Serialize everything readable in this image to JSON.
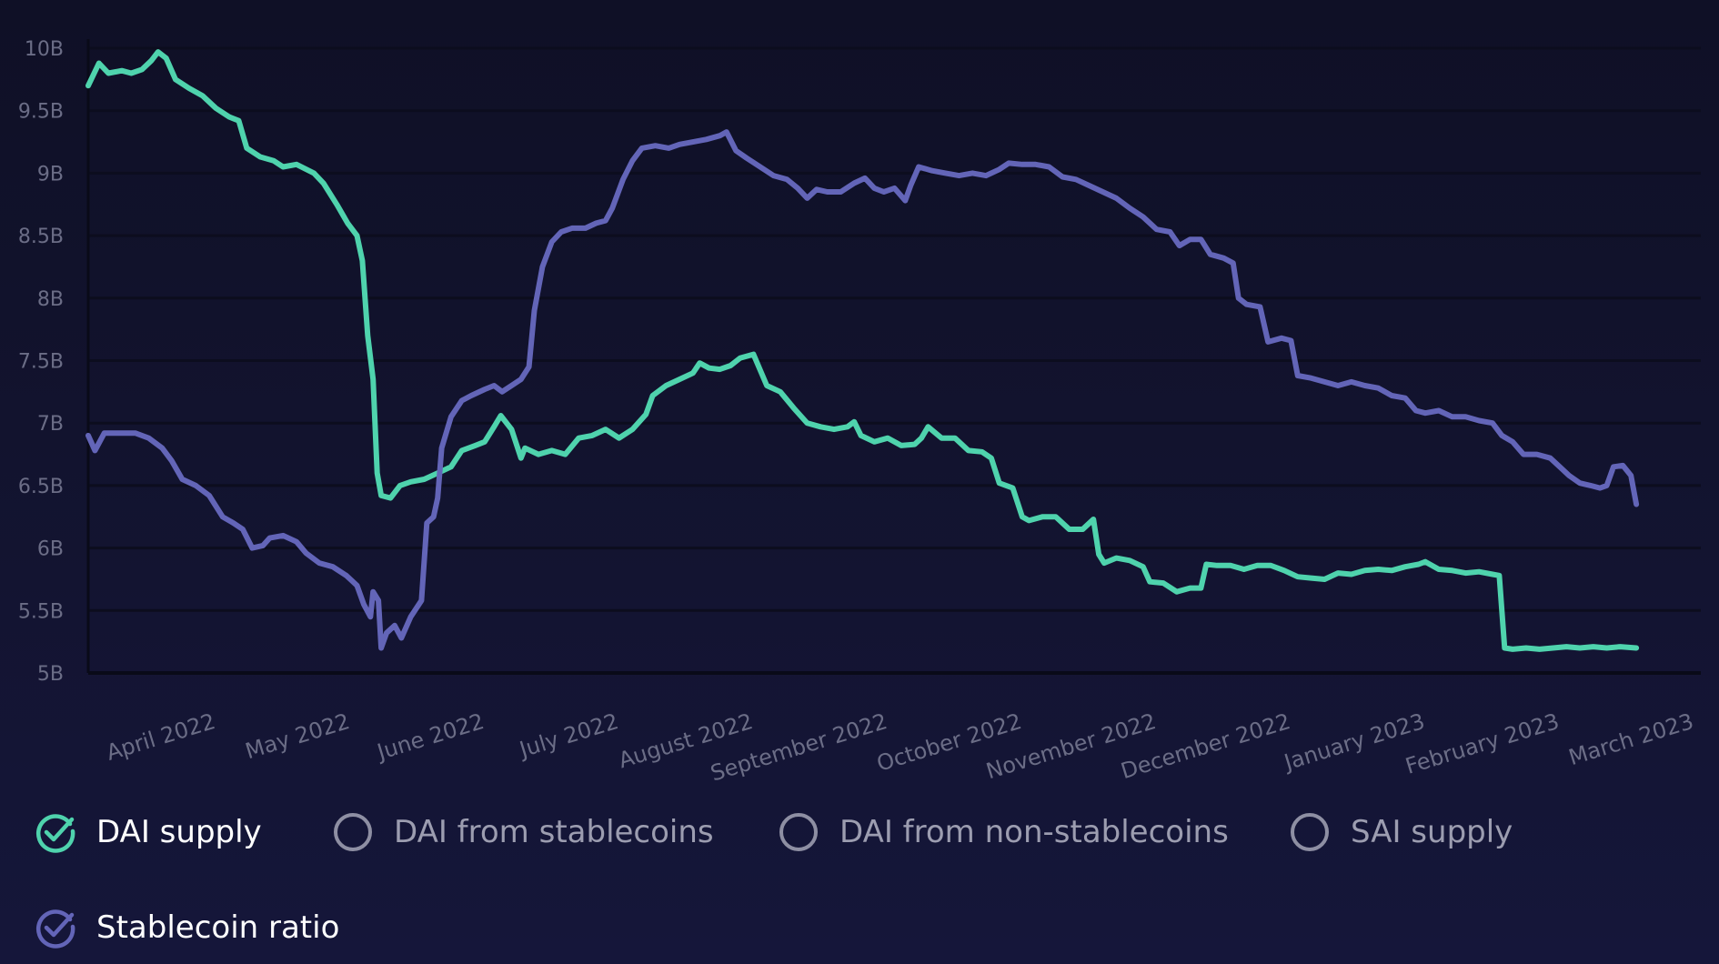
{
  "colors": {
    "dai_supply": "#4fd3ad",
    "stablecoin_ratio": "#6365b8",
    "inactive": "#8e8fa3",
    "grid": "#0c0d1e",
    "axis": "#090a18"
  },
  "chart_data": {
    "type": "line",
    "title": "",
    "xlabel": "",
    "ylabel": "",
    "ylim": [
      5000000000,
      10000000000
    ],
    "y_ticks": [
      {
        "value": 5000000000,
        "label": "5B"
      },
      {
        "value": 5500000000,
        "label": "5.5B"
      },
      {
        "value": 6000000000,
        "label": "6B"
      },
      {
        "value": 6500000000,
        "label": "6.5B"
      },
      {
        "value": 7000000000,
        "label": "7B"
      },
      {
        "value": 7500000000,
        "label": "7.5B"
      },
      {
        "value": 8000000000,
        "label": "8B"
      },
      {
        "value": 8500000000,
        "label": "8.5B"
      },
      {
        "value": 9000000000,
        "label": "9B"
      },
      {
        "value": 9500000000,
        "label": "9.5B"
      },
      {
        "value": 10000000000,
        "label": "10B"
      }
    ],
    "xlim": [
      0,
      12
    ],
    "x_ticks": [
      {
        "value": 0.55,
        "label": "April 2022"
      },
      {
        "value": 1.55,
        "label": "May 2022"
      },
      {
        "value": 2.55,
        "label": "June 2022"
      },
      {
        "value": 3.55,
        "label": "July 2022"
      },
      {
        "value": 4.55,
        "label": "August 2022"
      },
      {
        "value": 5.55,
        "label": "September 2022"
      },
      {
        "value": 6.55,
        "label": "October 2022"
      },
      {
        "value": 7.55,
        "label": "November 2022"
      },
      {
        "value": 8.55,
        "label": "December 2022"
      },
      {
        "value": 9.55,
        "label": "January 2023"
      },
      {
        "value": 10.55,
        "label": "February 2023"
      },
      {
        "value": 11.55,
        "label": "March 2023"
      }
    ],
    "series": [
      {
        "name": "DAI supply",
        "color": "#4fd3ad",
        "visible": true,
        "points": [
          [
            0.0,
            9.7
          ],
          [
            0.08,
            9.88
          ],
          [
            0.15,
            9.8
          ],
          [
            0.25,
            9.82
          ],
          [
            0.32,
            9.8
          ],
          [
            0.4,
            9.83
          ],
          [
            0.47,
            9.9
          ],
          [
            0.52,
            9.97
          ],
          [
            0.58,
            9.92
          ],
          [
            0.65,
            9.75
          ],
          [
            0.75,
            9.68
          ],
          [
            0.85,
            9.62
          ],
          [
            0.95,
            9.52
          ],
          [
            1.05,
            9.45
          ],
          [
            1.12,
            9.42
          ],
          [
            1.18,
            9.2
          ],
          [
            1.28,
            9.13
          ],
          [
            1.38,
            9.1
          ],
          [
            1.45,
            9.05
          ],
          [
            1.55,
            9.07
          ],
          [
            1.68,
            9.0
          ],
          [
            1.75,
            8.92
          ],
          [
            1.85,
            8.75
          ],
          [
            1.93,
            8.6
          ],
          [
            2.0,
            8.5
          ],
          [
            2.04,
            8.3
          ],
          [
            2.08,
            7.7
          ],
          [
            2.12,
            7.35
          ],
          [
            2.15,
            6.6
          ],
          [
            2.18,
            6.42
          ],
          [
            2.25,
            6.4
          ],
          [
            2.32,
            6.5
          ],
          [
            2.4,
            6.53
          ],
          [
            2.5,
            6.55
          ],
          [
            2.6,
            6.6
          ],
          [
            2.7,
            6.65
          ],
          [
            2.78,
            6.78
          ],
          [
            2.88,
            6.82
          ],
          [
            2.95,
            6.85
          ],
          [
            3.02,
            6.97
          ],
          [
            3.07,
            7.06
          ],
          [
            3.15,
            6.95
          ],
          [
            3.22,
            6.72
          ],
          [
            3.25,
            6.8
          ],
          [
            3.35,
            6.75
          ],
          [
            3.45,
            6.78
          ],
          [
            3.55,
            6.75
          ],
          [
            3.65,
            6.88
          ],
          [
            3.75,
            6.9
          ],
          [
            3.85,
            6.95
          ],
          [
            3.95,
            6.88
          ],
          [
            4.05,
            6.95
          ],
          [
            4.15,
            7.07
          ],
          [
            4.2,
            7.22
          ],
          [
            4.3,
            7.3
          ],
          [
            4.4,
            7.35
          ],
          [
            4.5,
            7.4
          ],
          [
            4.55,
            7.48
          ],
          [
            4.62,
            7.44
          ],
          [
            4.7,
            7.43
          ],
          [
            4.78,
            7.46
          ],
          [
            4.85,
            7.52
          ],
          [
            4.95,
            7.55
          ],
          [
            5.05,
            7.3
          ],
          [
            5.15,
            7.25
          ],
          [
            5.25,
            7.12
          ],
          [
            5.35,
            7.0
          ],
          [
            5.45,
            6.97
          ],
          [
            5.55,
            6.95
          ],
          [
            5.65,
            6.97
          ],
          [
            5.7,
            7.01
          ],
          [
            5.75,
            6.9
          ],
          [
            5.85,
            6.85
          ],
          [
            5.95,
            6.88
          ],
          [
            6.05,
            6.82
          ],
          [
            6.15,
            6.83
          ],
          [
            6.2,
            6.88
          ],
          [
            6.25,
            6.97
          ],
          [
            6.35,
            6.88
          ],
          [
            6.45,
            6.88
          ],
          [
            6.55,
            6.78
          ],
          [
            6.65,
            6.77
          ],
          [
            6.72,
            6.72
          ],
          [
            6.78,
            6.52
          ],
          [
            6.88,
            6.48
          ],
          [
            6.95,
            6.25
          ],
          [
            7.0,
            6.22
          ],
          [
            7.1,
            6.25
          ],
          [
            7.2,
            6.25
          ],
          [
            7.3,
            6.15
          ],
          [
            7.4,
            6.15
          ],
          [
            7.48,
            6.23
          ],
          [
            7.52,
            5.95
          ],
          [
            7.56,
            5.88
          ],
          [
            7.65,
            5.92
          ],
          [
            7.75,
            5.9
          ],
          [
            7.85,
            5.85
          ],
          [
            7.9,
            5.73
          ],
          [
            8.0,
            5.72
          ],
          [
            8.1,
            5.65
          ],
          [
            8.2,
            5.68
          ],
          [
            8.28,
            5.68
          ],
          [
            8.32,
            5.87
          ],
          [
            8.4,
            5.86
          ],
          [
            8.5,
            5.86
          ],
          [
            8.6,
            5.83
          ],
          [
            8.7,
            5.86
          ],
          [
            8.8,
            5.86
          ],
          [
            8.9,
            5.82
          ],
          [
            9.0,
            5.77
          ],
          [
            9.1,
            5.76
          ],
          [
            9.2,
            5.75
          ],
          [
            9.3,
            5.8
          ],
          [
            9.4,
            5.79
          ],
          [
            9.5,
            5.82
          ],
          [
            9.6,
            5.83
          ],
          [
            9.7,
            5.82
          ],
          [
            9.8,
            5.85
          ],
          [
            9.9,
            5.87
          ],
          [
            9.95,
            5.89
          ],
          [
            10.05,
            5.83
          ],
          [
            10.15,
            5.82
          ],
          [
            10.25,
            5.8
          ],
          [
            10.35,
            5.81
          ],
          [
            10.45,
            5.79
          ],
          [
            10.5,
            5.78
          ],
          [
            10.54,
            5.2
          ],
          [
            10.6,
            5.19
          ],
          [
            10.7,
            5.2
          ],
          [
            10.8,
            5.19
          ],
          [
            10.9,
            5.2
          ],
          [
            11.0,
            5.21
          ],
          [
            11.1,
            5.2
          ],
          [
            11.2,
            5.21
          ],
          [
            11.3,
            5.2
          ],
          [
            11.4,
            5.21
          ],
          [
            11.52,
            5.2
          ]
        ]
      },
      {
        "name": "Stablecoin ratio",
        "color": "#6365b8",
        "visible": true,
        "points": [
          [
            0.0,
            6.9
          ],
          [
            0.05,
            6.78
          ],
          [
            0.12,
            6.92
          ],
          [
            0.25,
            6.92
          ],
          [
            0.35,
            6.92
          ],
          [
            0.45,
            6.88
          ],
          [
            0.55,
            6.8
          ],
          [
            0.62,
            6.7
          ],
          [
            0.7,
            6.55
          ],
          [
            0.8,
            6.5
          ],
          [
            0.9,
            6.42
          ],
          [
            1.0,
            6.25
          ],
          [
            1.08,
            6.2
          ],
          [
            1.15,
            6.15
          ],
          [
            1.22,
            6.0
          ],
          [
            1.3,
            6.02
          ],
          [
            1.35,
            6.08
          ],
          [
            1.45,
            6.1
          ],
          [
            1.55,
            6.05
          ],
          [
            1.62,
            5.96
          ],
          [
            1.72,
            5.88
          ],
          [
            1.82,
            5.85
          ],
          [
            1.92,
            5.78
          ],
          [
            2.0,
            5.7
          ],
          [
            2.05,
            5.55
          ],
          [
            2.1,
            5.45
          ],
          [
            2.12,
            5.65
          ],
          [
            2.16,
            5.58
          ],
          [
            2.18,
            5.2
          ],
          [
            2.22,
            5.32
          ],
          [
            2.28,
            5.38
          ],
          [
            2.33,
            5.28
          ],
          [
            2.4,
            5.45
          ],
          [
            2.48,
            5.58
          ],
          [
            2.52,
            6.2
          ],
          [
            2.57,
            6.25
          ],
          [
            2.6,
            6.4
          ],
          [
            2.63,
            6.8
          ],
          [
            2.7,
            7.05
          ],
          [
            2.78,
            7.18
          ],
          [
            2.85,
            7.22
          ],
          [
            2.95,
            7.27
          ],
          [
            3.02,
            7.3
          ],
          [
            3.08,
            7.25
          ],
          [
            3.15,
            7.3
          ],
          [
            3.22,
            7.35
          ],
          [
            3.28,
            7.45
          ],
          [
            3.32,
            7.9
          ],
          [
            3.38,
            8.25
          ],
          [
            3.45,
            8.45
          ],
          [
            3.52,
            8.53
          ],
          [
            3.6,
            8.56
          ],
          [
            3.7,
            8.56
          ],
          [
            3.78,
            8.6
          ],
          [
            3.85,
            8.62
          ],
          [
            3.9,
            8.72
          ],
          [
            3.98,
            8.95
          ],
          [
            4.05,
            9.1
          ],
          [
            4.12,
            9.2
          ],
          [
            4.22,
            9.22
          ],
          [
            4.32,
            9.2
          ],
          [
            4.4,
            9.23
          ],
          [
            4.5,
            9.25
          ],
          [
            4.6,
            9.27
          ],
          [
            4.7,
            9.3
          ],
          [
            4.75,
            9.33
          ],
          [
            4.82,
            9.18
          ],
          [
            4.9,
            9.12
          ],
          [
            5.0,
            9.05
          ],
          [
            5.1,
            8.98
          ],
          [
            5.2,
            8.95
          ],
          [
            5.28,
            8.88
          ],
          [
            5.35,
            8.8
          ],
          [
            5.42,
            8.87
          ],
          [
            5.5,
            8.85
          ],
          [
            5.6,
            8.85
          ],
          [
            5.7,
            8.92
          ],
          [
            5.78,
            8.96
          ],
          [
            5.85,
            8.88
          ],
          [
            5.92,
            8.85
          ],
          [
            6.0,
            8.88
          ],
          [
            6.08,
            8.78
          ],
          [
            6.12,
            8.9
          ],
          [
            6.18,
            9.05
          ],
          [
            6.28,
            9.02
          ],
          [
            6.38,
            9.0
          ],
          [
            6.48,
            8.98
          ],
          [
            6.58,
            9.0
          ],
          [
            6.68,
            8.98
          ],
          [
            6.78,
            9.03
          ],
          [
            6.85,
            9.08
          ],
          [
            6.95,
            9.07
          ],
          [
            7.05,
            9.07
          ],
          [
            7.15,
            9.05
          ],
          [
            7.25,
            8.97
          ],
          [
            7.35,
            8.95
          ],
          [
            7.45,
            8.9
          ],
          [
            7.55,
            8.85
          ],
          [
            7.65,
            8.8
          ],
          [
            7.75,
            8.72
          ],
          [
            7.85,
            8.65
          ],
          [
            7.95,
            8.55
          ],
          [
            8.05,
            8.53
          ],
          [
            8.12,
            8.42
          ],
          [
            8.2,
            8.47
          ],
          [
            8.28,
            8.47
          ],
          [
            8.35,
            8.35
          ],
          [
            8.45,
            8.32
          ],
          [
            8.52,
            8.28
          ],
          [
            8.56,
            8.0
          ],
          [
            8.62,
            7.95
          ],
          [
            8.72,
            7.93
          ],
          [
            8.78,
            7.65
          ],
          [
            8.88,
            7.68
          ],
          [
            8.95,
            7.66
          ],
          [
            9.0,
            7.38
          ],
          [
            9.1,
            7.36
          ],
          [
            9.2,
            7.33
          ],
          [
            9.3,
            7.3
          ],
          [
            9.4,
            7.33
          ],
          [
            9.5,
            7.3
          ],
          [
            9.6,
            7.28
          ],
          [
            9.7,
            7.22
          ],
          [
            9.8,
            7.2
          ],
          [
            9.88,
            7.1
          ],
          [
            9.95,
            7.08
          ],
          [
            10.05,
            7.1
          ],
          [
            10.15,
            7.05
          ],
          [
            10.25,
            7.05
          ],
          [
            10.35,
            7.02
          ],
          [
            10.45,
            7.0
          ],
          [
            10.52,
            6.9
          ],
          [
            10.6,
            6.85
          ],
          [
            10.68,
            6.75
          ],
          [
            10.78,
            6.75
          ],
          [
            10.88,
            6.72
          ],
          [
            10.95,
            6.65
          ],
          [
            11.02,
            6.58
          ],
          [
            11.1,
            6.52
          ],
          [
            11.18,
            6.5
          ],
          [
            11.25,
            6.48
          ],
          [
            11.3,
            6.5
          ],
          [
            11.35,
            6.65
          ],
          [
            11.42,
            6.66
          ],
          [
            11.48,
            6.58
          ],
          [
            11.52,
            6.35
          ]
        ]
      }
    ]
  },
  "legend": {
    "items": [
      {
        "label": "DAI supply",
        "checked": true
      },
      {
        "label": "DAI from stablecoins",
        "checked": false
      },
      {
        "label": "DAI from non-stablecoins",
        "checked": false
      },
      {
        "label": "SAI supply",
        "checked": false
      },
      {
        "label": "Stablecoin ratio",
        "checked": true
      }
    ]
  }
}
